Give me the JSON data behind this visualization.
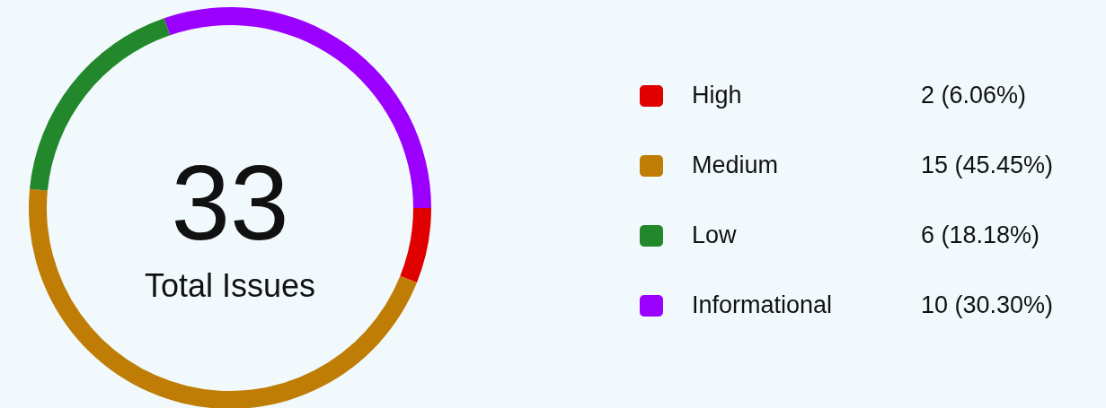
{
  "chart_data": {
    "type": "donut",
    "categories": [
      "High",
      "Medium",
      "Low",
      "Informational"
    ],
    "values": [
      2,
      15,
      6,
      10
    ],
    "colors": [
      "#e00000",
      "#bf7d05",
      "#22882b",
      "#9b00ff"
    ],
    "value_labels": [
      "2 (6.06%)",
      "15 (45.45%)",
      "6 (18.18%)",
      "10 (30.30%)"
    ],
    "annotations": [
      "33",
      "Total Issues"
    ],
    "legend": "right"
  }
}
